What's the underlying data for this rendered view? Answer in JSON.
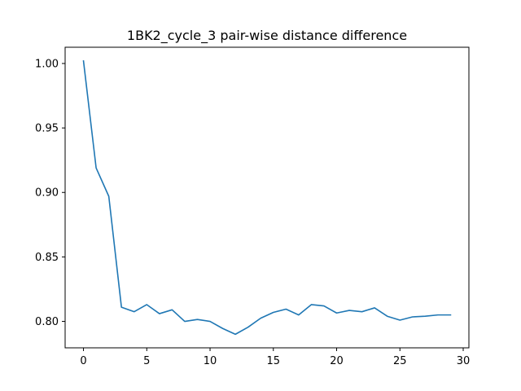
{
  "chart_data": {
    "type": "line",
    "title": "1BK2_cycle_3 pair-wise distance difference",
    "xlabel": "",
    "ylabel": "",
    "xlim": [
      -1.45,
      30.45
    ],
    "ylim": [
      0.7795,
      1.0126
    ],
    "x_ticks": [
      0,
      5,
      10,
      15,
      20,
      25,
      30
    ],
    "x_tick_labels": [
      "0",
      "5",
      "10",
      "15",
      "20",
      "25",
      "30"
    ],
    "y_ticks": [
      0.8,
      0.85,
      0.9,
      0.95,
      1.0
    ],
    "y_tick_labels": [
      "0.80",
      "0.85",
      "0.90",
      "0.95",
      "1.00"
    ],
    "grid": false,
    "legend": "none",
    "series": [
      {
        "color": "#1f77b4",
        "x": [
          0,
          1,
          2,
          3,
          4,
          5,
          6,
          7,
          8,
          9,
          10,
          11,
          12,
          13,
          14,
          15,
          16,
          17,
          18,
          19,
          20,
          21,
          22,
          23,
          24,
          25,
          26,
          27,
          28,
          29
        ],
        "values": [
          1.002,
          0.919,
          0.897,
          0.811,
          0.8075,
          0.813,
          0.806,
          0.809,
          0.8,
          0.8015,
          0.8,
          0.7945,
          0.79,
          0.7955,
          0.8025,
          0.807,
          0.8095,
          0.805,
          0.813,
          0.812,
          0.8065,
          0.8085,
          0.8075,
          0.8105,
          0.804,
          0.801,
          0.8035,
          0.804,
          0.805,
          0.805
        ]
      }
    ]
  }
}
